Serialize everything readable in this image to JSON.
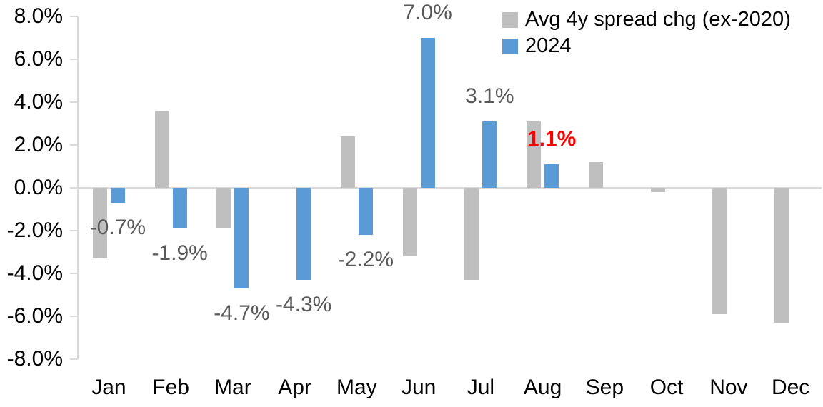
{
  "chart_data": {
    "type": "bar",
    "title": "",
    "categories": [
      "Jan",
      "Feb",
      "Mar",
      "Apr",
      "May",
      "Jun",
      "Jul",
      "Aug",
      "Sep",
      "Oct",
      "Nov",
      "Dec"
    ],
    "series": [
      {
        "name": "Avg 4y spread chg (ex-2020)",
        "color": "#bfbfbf",
        "values": [
          -3.3,
          3.6,
          -1.9,
          0.0,
          2.4,
          -3.2,
          -4.3,
          3.1,
          1.2,
          -0.2,
          -5.9,
          -6.3
        ]
      },
      {
        "name": "2024",
        "color": "#5b9bd5",
        "values": [
          -0.7,
          -1.9,
          -4.7,
          -4.3,
          -2.2,
          7.0,
          3.1,
          1.1,
          null,
          null,
          null,
          null
        ]
      }
    ],
    "data_labels": [
      {
        "category": "Jan",
        "series": "2024",
        "text": "-0.7%",
        "color": "#595959",
        "bold": false
      },
      {
        "category": "Feb",
        "series": "2024",
        "text": "-1.9%",
        "color": "#595959",
        "bold": false
      },
      {
        "category": "Mar",
        "series": "2024",
        "text": "-4.7%",
        "color": "#595959",
        "bold": false
      },
      {
        "category": "Apr",
        "series": "2024",
        "text": "-4.3%",
        "color": "#595959",
        "bold": false
      },
      {
        "category": "May",
        "series": "2024",
        "text": "-2.2%",
        "color": "#595959",
        "bold": false
      },
      {
        "category": "Jun",
        "series": "2024",
        "text": "7.0%",
        "color": "#595959",
        "bold": false
      },
      {
        "category": "Jul",
        "series": "2024",
        "text": "3.1%",
        "color": "#595959",
        "bold": false
      },
      {
        "category": "Aug",
        "series": "2024",
        "text": "1.1%",
        "color": "#ff0000",
        "bold": true
      }
    ],
    "y_axis": {
      "min": -8,
      "max": 8,
      "step": 2,
      "tick_labels": [
        "8.0%",
        "6.0%",
        "4.0%",
        "2.0%",
        "0.0%",
        "-2.0%",
        "-4.0%",
        "-6.0%",
        "-8.0%"
      ]
    },
    "x_axis": {
      "labels": [
        "Jan",
        "Feb",
        "Mar",
        "Apr",
        "May",
        "Jun",
        "Jul",
        "Aug",
        "Sep",
        "Oct",
        "Nov",
        "Dec"
      ]
    },
    "legend": {
      "position": "top-right",
      "entries": [
        {
          "label": "Avg 4y spread chg (ex-2020)",
          "color": "#bfbfbf"
        },
        {
          "label": "2024",
          "color": "#5b9bd5"
        }
      ]
    },
    "grid": false,
    "colors": {
      "axis_line": "#d9d9d9",
      "background": "#ffffff",
      "data_label_default": "#595959"
    }
  }
}
